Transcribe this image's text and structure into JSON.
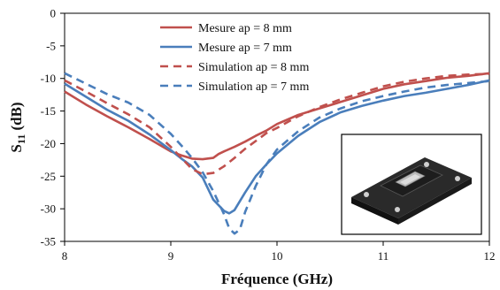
{
  "chart_data": {
    "type": "line",
    "xlabel": "Fréquence (GHz)",
    "ylabel_main": "S",
    "ylabel_sub": "11",
    "ylabel_unit": " (dB)",
    "xlim": [
      8,
      12
    ],
    "ylim": [
      -35,
      0
    ],
    "xticks": [
      8,
      9,
      10,
      11,
      12
    ],
    "yticks": [
      0,
      -5,
      -10,
      -15,
      -20,
      -25,
      -30,
      -35
    ],
    "grid": false,
    "legend_position": "top-center",
    "series": [
      {
        "name": "Mesure ap = 8 mm",
        "color": "#c0504d",
        "dash": "solid",
        "points": [
          [
            8.0,
            -12.0
          ],
          [
            8.2,
            -14.0
          ],
          [
            8.4,
            -15.8
          ],
          [
            8.6,
            -17.5
          ],
          [
            8.8,
            -19.3
          ],
          [
            9.0,
            -21.2
          ],
          [
            9.1,
            -21.8
          ],
          [
            9.2,
            -22.3
          ],
          [
            9.3,
            -22.4
          ],
          [
            9.4,
            -22.2
          ],
          [
            9.45,
            -21.6
          ],
          [
            9.5,
            -21.2
          ],
          [
            9.6,
            -20.5
          ],
          [
            9.7,
            -19.7
          ],
          [
            9.8,
            -18.8
          ],
          [
            9.9,
            -18.0
          ],
          [
            10.0,
            -17.0
          ],
          [
            10.2,
            -15.6
          ],
          [
            10.4,
            -14.6
          ],
          [
            10.6,
            -13.6
          ],
          [
            10.8,
            -12.6
          ],
          [
            11.0,
            -11.6
          ],
          [
            11.2,
            -10.9
          ],
          [
            11.4,
            -10.4
          ],
          [
            11.6,
            -9.9
          ],
          [
            11.8,
            -9.6
          ],
          [
            12.0,
            -9.2
          ]
        ]
      },
      {
        "name": "Mesure ap = 7 mm",
        "color": "#4a7ebb",
        "dash": "solid",
        "points": [
          [
            8.0,
            -10.8
          ],
          [
            8.2,
            -12.8
          ],
          [
            8.4,
            -14.8
          ],
          [
            8.6,
            -16.5
          ],
          [
            8.8,
            -18.6
          ],
          [
            9.0,
            -21.0
          ],
          [
            9.1,
            -22.3
          ],
          [
            9.2,
            -23.5
          ],
          [
            9.3,
            -25.2
          ],
          [
            9.4,
            -28.6
          ],
          [
            9.5,
            -30.3
          ],
          [
            9.55,
            -30.7
          ],
          [
            9.6,
            -30.2
          ],
          [
            9.7,
            -27.5
          ],
          [
            9.8,
            -25.0
          ],
          [
            9.9,
            -23.2
          ],
          [
            10.0,
            -21.5
          ],
          [
            10.2,
            -18.8
          ],
          [
            10.4,
            -16.7
          ],
          [
            10.6,
            -15.2
          ],
          [
            10.8,
            -14.2
          ],
          [
            11.0,
            -13.4
          ],
          [
            11.2,
            -12.7
          ],
          [
            11.4,
            -12.2
          ],
          [
            11.6,
            -11.6
          ],
          [
            11.8,
            -11.0
          ],
          [
            12.0,
            -10.3
          ]
        ]
      },
      {
        "name": "Simulation ap = 8 mm",
        "color": "#c0504d",
        "dash": "dashed",
        "points": [
          [
            8.0,
            -10.3
          ],
          [
            8.2,
            -12.0
          ],
          [
            8.4,
            -13.8
          ],
          [
            8.6,
            -15.5
          ],
          [
            8.8,
            -17.5
          ],
          [
            9.0,
            -20.5
          ],
          [
            9.1,
            -22.2
          ],
          [
            9.2,
            -23.9
          ],
          [
            9.3,
            -24.7
          ],
          [
            9.4,
            -24.5
          ],
          [
            9.5,
            -23.5
          ],
          [
            9.6,
            -22.2
          ],
          [
            9.7,
            -20.8
          ],
          [
            9.8,
            -19.6
          ],
          [
            9.9,
            -18.4
          ],
          [
            10.0,
            -17.6
          ],
          [
            10.2,
            -15.8
          ],
          [
            10.4,
            -14.4
          ],
          [
            10.6,
            -13.2
          ],
          [
            10.8,
            -12.2
          ],
          [
            11.0,
            -11.2
          ],
          [
            11.2,
            -10.5
          ],
          [
            11.4,
            -10.0
          ],
          [
            11.6,
            -9.6
          ],
          [
            11.8,
            -9.4
          ],
          [
            12.0,
            -9.3
          ]
        ]
      },
      {
        "name": "Simulation ap = 7 mm",
        "color": "#4a7ebb",
        "dash": "dashed",
        "points": [
          [
            8.0,
            -9.2
          ],
          [
            8.2,
            -10.8
          ],
          [
            8.4,
            -12.4
          ],
          [
            8.6,
            -13.7
          ],
          [
            8.8,
            -15.6
          ],
          [
            9.0,
            -18.5
          ],
          [
            9.1,
            -20.3
          ],
          [
            9.2,
            -22.2
          ],
          [
            9.3,
            -24.4
          ],
          [
            9.4,
            -27.3
          ],
          [
            9.5,
            -30.8
          ],
          [
            9.55,
            -33.0
          ],
          [
            9.6,
            -33.8
          ],
          [
            9.65,
            -33.2
          ],
          [
            9.7,
            -30.5
          ],
          [
            9.8,
            -26.5
          ],
          [
            9.9,
            -23.2
          ],
          [
            10.0,
            -20.9
          ],
          [
            10.2,
            -18.1
          ],
          [
            10.4,
            -16.0
          ],
          [
            10.6,
            -14.6
          ],
          [
            10.8,
            -13.5
          ],
          [
            11.0,
            -12.7
          ],
          [
            11.2,
            -12.0
          ],
          [
            11.4,
            -11.4
          ],
          [
            11.6,
            -11.0
          ],
          [
            11.8,
            -10.7
          ],
          [
            12.0,
            -10.4
          ]
        ]
      }
    ]
  },
  "inset": {
    "image_icon": "device-photo-icon"
  }
}
